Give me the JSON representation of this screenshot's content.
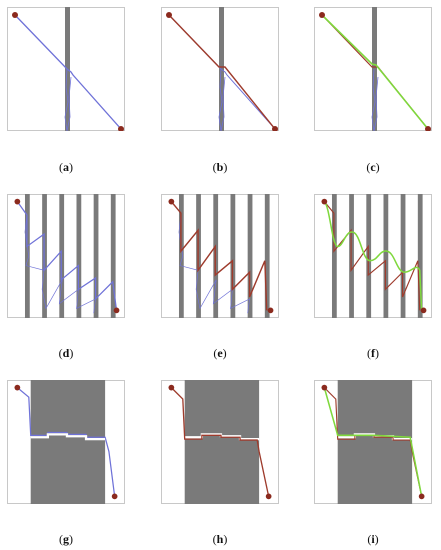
{
  "colors": {
    "obstacle": "#7a7a7a",
    "blue_path": "#6f72d8",
    "red_path": "#9e3b2c",
    "green_path": "#7fd83c",
    "endpoint": "#8b2a1e",
    "frame": "#c8c8c8"
  },
  "captions": {
    "a": "(a)",
    "b": "(b)",
    "c": "(c)",
    "d": "(d)",
    "e": "(e)",
    "f": "(f)",
    "g": "(g)",
    "h": "(h)",
    "i": "(i)"
  }
}
